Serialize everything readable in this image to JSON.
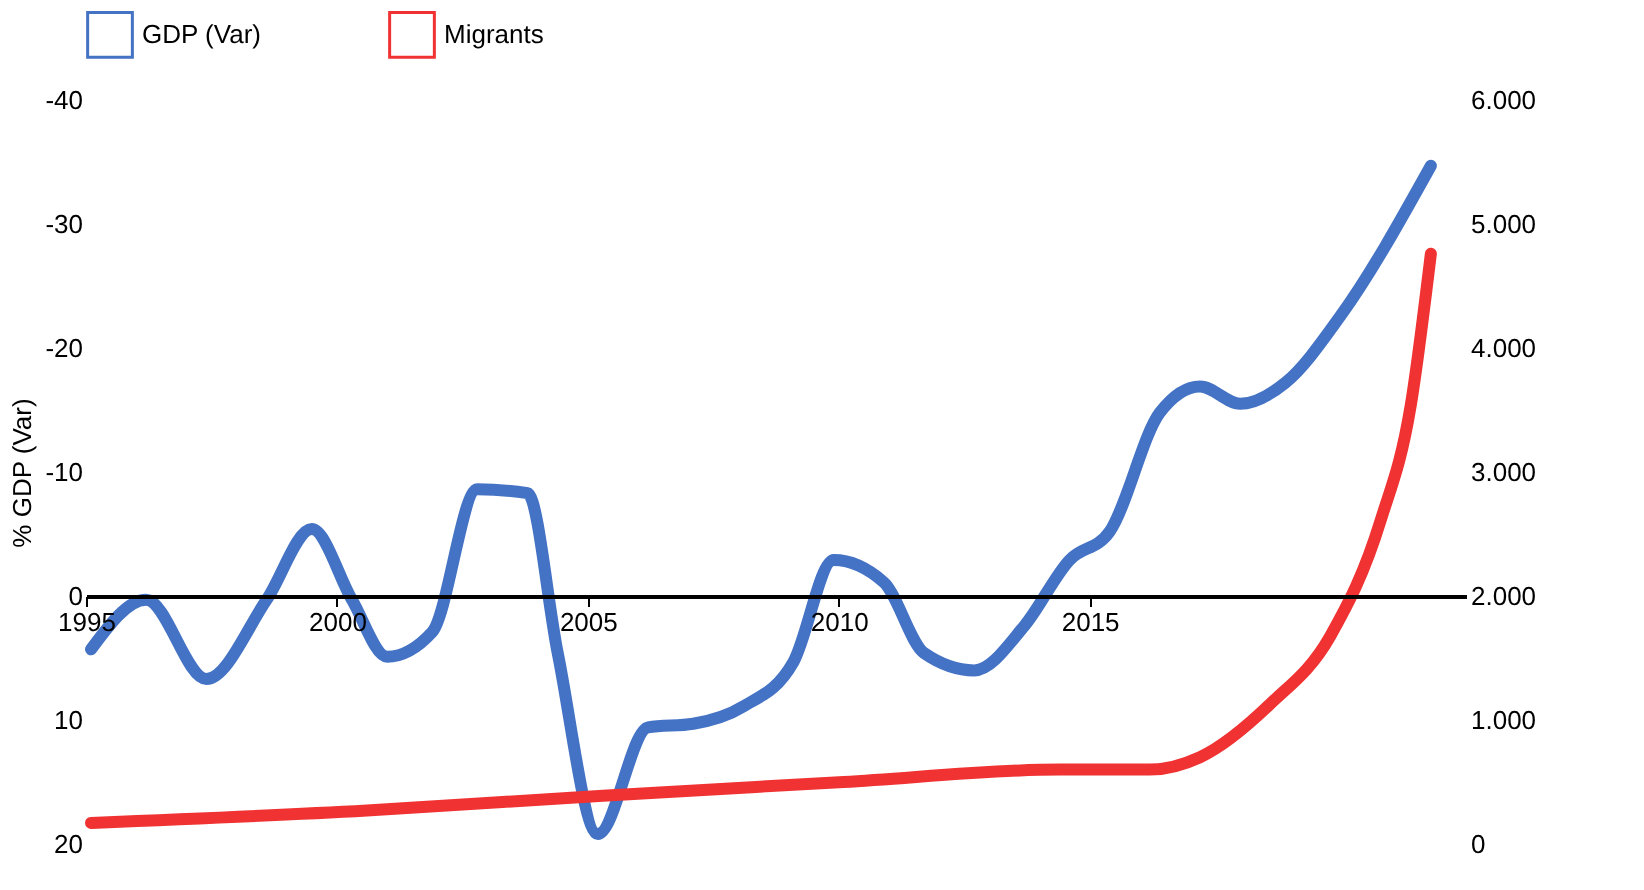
{
  "chart_data": {
    "type": "line",
    "ylabel": "% GDP (Var)",
    "xlim": [
      1995,
      2022.5
    ],
    "xticks": [
      1995,
      2000,
      2005,
      2010,
      2015
    ],
    "ylim": [
      20,
      -40
    ],
    "yticks": [
      20,
      10,
      0,
      -10,
      -20,
      -30,
      -40
    ],
    "y2lim": [
      0,
      6000
    ],
    "y2ticks": [
      0,
      {
        "value": 1000,
        "label": "1.000"
      },
      {
        "value": 2000,
        "label": "2.000"
      },
      {
        "value": 3000,
        "label": "3.000"
      },
      {
        "value": 4000,
        "label": "4.000"
      },
      {
        "value": 5000,
        "label": "5.000"
      },
      {
        "value": 6000,
        "label": "6.000"
      }
    ],
    "legend": "top",
    "grid": false,
    "marker": "none",
    "line_style": "solid",
    "series": [
      {
        "name": "GDP (Var)",
        "color": "#4472c4",
        "x": [
          1995.1,
          1996.2,
          1997.4,
          1998.6,
          1999.5,
          2000.3,
          2001.0,
          2001.9,
          2002.8,
          2003.8,
          2004.4,
          2005.2,
          2006.2,
          2007.1,
          2008.1,
          2009.1,
          2009.9,
          2010.9,
          2011.7,
          2012.7,
          2013.7,
          2014.6,
          2015.4,
          2016.4,
          2017.2,
          2018.0,
          2018.9,
          2020.0,
          2021.8
        ],
        "values": [
          4.3,
          0.3,
          6.7,
          0.3,
          -5.4,
          0.3,
          4.9,
          2.9,
          -8.6,
          -8.3,
          4.6,
          19.2,
          10.6,
          10.3,
          8.9,
          5.3,
          -2.9,
          -1.1,
          4.6,
          6.0,
          2.4,
          -2.9,
          -5.2,
          -14.8,
          -16.9,
          -15.5,
          -17.2,
          -22.6,
          -34.7
        ]
      },
      {
        "name": "Migrants",
        "color": "#f03232",
        "axis": "y2",
        "x": [
          1995.1,
          2000.6,
          2005.3,
          2010.1,
          2014.4,
          2016.2,
          2017.2,
          2018.6,
          2019.8,
          2020.8,
          2021.4,
          2021.8
        ],
        "values": [
          170,
          270,
          390,
          500,
          600,
          600,
          700,
          1130,
          1680,
          2610,
          3540,
          4760
        ]
      }
    ]
  }
}
